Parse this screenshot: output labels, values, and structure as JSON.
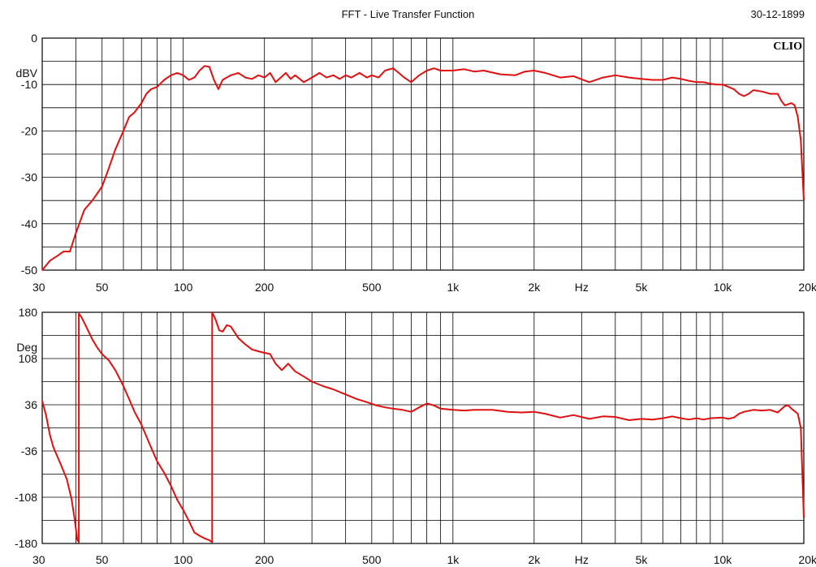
{
  "window": {
    "title": "FFT - Live Transfer Function",
    "date": "30-12-1899",
    "brand": "CLIO"
  },
  "colors": {
    "trace": "#e01010",
    "grid": "#000000",
    "background": "#ffffff"
  },
  "chart_data": [
    {
      "type": "line",
      "panel": "magnitude",
      "ylabel": "dBV",
      "x_scale": "log",
      "xlim": [
        30,
        20000
      ],
      "ylim": [
        -50,
        0
      ],
      "grid": true,
      "y_ticks": [
        0,
        -10,
        -20,
        -30,
        -40,
        -50
      ],
      "x_ticks": [
        {
          "value": 30,
          "label": "30"
        },
        {
          "value": 50,
          "label": "50"
        },
        {
          "value": 100,
          "label": "100"
        },
        {
          "value": 200,
          "label": "200"
        },
        {
          "value": 500,
          "label": "500"
        },
        {
          "value": 1000,
          "label": "1k"
        },
        {
          "value": 2000,
          "label": "2k"
        },
        {
          "value": 3000,
          "label": "Hz"
        },
        {
          "value": 5000,
          "label": "5k"
        },
        {
          "value": 10000,
          "label": "10k"
        },
        {
          "value": 20000,
          "label": "20k"
        }
      ],
      "series": [
        {
          "color": "#e01010",
          "points": [
            [
              30,
              -50
            ],
            [
              32,
              -48
            ],
            [
              34,
              -47
            ],
            [
              36,
              -46
            ],
            [
              38,
              -46
            ],
            [
              40,
              -42
            ],
            [
              43,
              -37
            ],
            [
              46,
              -35
            ],
            [
              50,
              -32
            ],
            [
              53,
              -28
            ],
            [
              56,
              -24
            ],
            [
              60,
              -20
            ],
            [
              63,
              -17
            ],
            [
              66,
              -16
            ],
            [
              70,
              -14
            ],
            [
              73,
              -12
            ],
            [
              76,
              -11
            ],
            [
              80,
              -10.5
            ],
            [
              85,
              -9
            ],
            [
              90,
              -8
            ],
            [
              95,
              -7.5
            ],
            [
              100,
              -8
            ],
            [
              105,
              -9
            ],
            [
              110,
              -8.5
            ],
            [
              115,
              -7
            ],
            [
              120,
              -6
            ],
            [
              125,
              -6.2
            ],
            [
              130,
              -9
            ],
            [
              135,
              -11
            ],
            [
              140,
              -9
            ],
            [
              150,
              -8
            ],
            [
              160,
              -7.5
            ],
            [
              170,
              -8.5
            ],
            [
              180,
              -8.8
            ],
            [
              190,
              -8
            ],
            [
              200,
              -8.5
            ],
            [
              210,
              -7.5
            ],
            [
              220,
              -9.5
            ],
            [
              230,
              -8.5
            ],
            [
              240,
              -7.5
            ],
            [
              250,
              -8.8
            ],
            [
              260,
              -8
            ],
            [
              280,
              -9.5
            ],
            [
              300,
              -8.5
            ],
            [
              320,
              -7.5
            ],
            [
              340,
              -8.5
            ],
            [
              360,
              -8
            ],
            [
              380,
              -8.8
            ],
            [
              400,
              -8
            ],
            [
              420,
              -8.5
            ],
            [
              450,
              -7.5
            ],
            [
              480,
              -8.5
            ],
            [
              500,
              -8
            ],
            [
              530,
              -8.5
            ],
            [
              560,
              -7
            ],
            [
              600,
              -6.5
            ],
            [
              630,
              -7.5
            ],
            [
              660,
              -8.5
            ],
            [
              700,
              -9.5
            ],
            [
              750,
              -8
            ],
            [
              800,
              -7
            ],
            [
              850,
              -6.5
            ],
            [
              900,
              -7
            ],
            [
              1000,
              -7
            ],
            [
              1100,
              -6.7
            ],
            [
              1200,
              -7.2
            ],
            [
              1300,
              -7
            ],
            [
              1500,
              -7.8
            ],
            [
              1700,
              -8
            ],
            [
              1850,
              -7.2
            ],
            [
              2000,
              -7
            ],
            [
              2200,
              -7.5
            ],
            [
              2500,
              -8.5
            ],
            [
              2800,
              -8.2
            ],
            [
              3200,
              -9.5
            ],
            [
              3600,
              -8.5
            ],
            [
              4000,
              -8
            ],
            [
              4500,
              -8.5
            ],
            [
              5000,
              -8.8
            ],
            [
              5500,
              -9
            ],
            [
              6000,
              -9
            ],
            [
              6500,
              -8.5
            ],
            [
              7000,
              -8.8
            ],
            [
              7500,
              -9.2
            ],
            [
              8000,
              -9.5
            ],
            [
              8500,
              -9.5
            ],
            [
              9000,
              -9.8
            ],
            [
              9500,
              -10
            ],
            [
              10000,
              -10
            ],
            [
              10500,
              -10.5
            ],
            [
              11000,
              -11
            ],
            [
              11500,
              -12
            ],
            [
              12000,
              -12.5
            ],
            [
              12500,
              -12
            ],
            [
              13000,
              -11.2
            ],
            [
              14000,
              -11.5
            ],
            [
              15000,
              -12
            ],
            [
              16000,
              -12
            ],
            [
              16500,
              -13.5
            ],
            [
              17000,
              -14.5
            ],
            [
              18000,
              -14
            ],
            [
              18500,
              -14.5
            ],
            [
              19000,
              -17
            ],
            [
              19500,
              -22
            ],
            [
              20000,
              -35
            ]
          ]
        }
      ]
    },
    {
      "type": "line",
      "panel": "phase",
      "ylabel": "Deg",
      "x_scale": "log",
      "xlim": [
        30,
        20000
      ],
      "ylim": [
        -180,
        180
      ],
      "grid": true,
      "y_ticks": [
        180,
        108,
        36,
        -36,
        -108,
        -180
      ],
      "x_ticks": [
        {
          "value": 30,
          "label": "30"
        },
        {
          "value": 50,
          "label": "50"
        },
        {
          "value": 100,
          "label": "100"
        },
        {
          "value": 200,
          "label": "200"
        },
        {
          "value": 500,
          "label": "500"
        },
        {
          "value": 1000,
          "label": "1k"
        },
        {
          "value": 2000,
          "label": "2k"
        },
        {
          "value": 3000,
          "label": "Hz"
        },
        {
          "value": 5000,
          "label": "5k"
        },
        {
          "value": 10000,
          "label": "10k"
        },
        {
          "value": 20000,
          "label": "20k"
        }
      ],
      "series": [
        {
          "color": "#e01010",
          "points": [
            [
              30,
              42
            ],
            [
              31,
              20
            ],
            [
              32,
              -10
            ],
            [
              33,
              -30
            ],
            [
              35,
              -55
            ],
            [
              37,
              -80
            ],
            [
              38.5,
              -110
            ],
            [
              39.5,
              -140
            ],
            [
              40.5,
              -175
            ],
            [
              41,
              -178
            ],
            [
              41,
              178
            ],
            [
              42,
              172
            ],
            [
              44,
              155
            ],
            [
              46,
              138
            ],
            [
              48,
              125
            ],
            [
              50,
              115
            ],
            [
              53,
              105
            ],
            [
              56,
              90
            ],
            [
              60,
              65
            ],
            [
              63,
              45
            ],
            [
              66,
              25
            ],
            [
              70,
              5
            ],
            [
              75,
              -25
            ],
            [
              80,
              -52
            ],
            [
              85,
              -70
            ],
            [
              90,
              -90
            ],
            [
              95,
              -112
            ],
            [
              100,
              -128
            ],
            [
              105,
              -145
            ],
            [
              110,
              -163
            ],
            [
              115,
              -168
            ],
            [
              120,
              -172
            ],
            [
              125,
              -175
            ],
            [
              128,
              -178
            ],
            [
              128,
              180
            ],
            [
              132,
              168
            ],
            [
              136,
              152
            ],
            [
              140,
              150
            ],
            [
              145,
              160
            ],
            [
              150,
              158
            ],
            [
              160,
              140
            ],
            [
              170,
              130
            ],
            [
              180,
              122
            ],
            [
              195,
              118
            ],
            [
              210,
              115
            ],
            [
              220,
              100
            ],
            [
              232,
              90
            ],
            [
              245,
              100
            ],
            [
              260,
              88
            ],
            [
              280,
              80
            ],
            [
              300,
              72
            ],
            [
              330,
              65
            ],
            [
              360,
              60
            ],
            [
              400,
              52
            ],
            [
              440,
              45
            ],
            [
              480,
              40
            ],
            [
              520,
              35
            ],
            [
              560,
              32
            ],
            [
              600,
              30
            ],
            [
              650,
              28
            ],
            [
              700,
              25
            ],
            [
              750,
              32
            ],
            [
              800,
              38
            ],
            [
              850,
              35
            ],
            [
              900,
              30
            ],
            [
              1000,
              28
            ],
            [
              1100,
              27
            ],
            [
              1200,
              28
            ],
            [
              1400,
              28
            ],
            [
              1600,
              25
            ],
            [
              1800,
              24
            ],
            [
              2000,
              25
            ],
            [
              2200,
              22
            ],
            [
              2500,
              16
            ],
            [
              2800,
              20
            ],
            [
              3200,
              14
            ],
            [
              3600,
              18
            ],
            [
              4000,
              17
            ],
            [
              4500,
              12
            ],
            [
              5000,
              14
            ],
            [
              5500,
              13
            ],
            [
              6000,
              15
            ],
            [
              6500,
              18
            ],
            [
              7000,
              15
            ],
            [
              7500,
              13
            ],
            [
              8000,
              15
            ],
            [
              8500,
              13
            ],
            [
              9000,
              15
            ],
            [
              10000,
              16
            ],
            [
              10500,
              14
            ],
            [
              11000,
              16
            ],
            [
              11500,
              22
            ],
            [
              12000,
              25
            ],
            [
              13000,
              28
            ],
            [
              14000,
              27
            ],
            [
              15000,
              28
            ],
            [
              16000,
              24
            ],
            [
              17000,
              34
            ],
            [
              17500,
              35
            ],
            [
              18000,
              30
            ],
            [
              19000,
              22
            ],
            [
              19500,
              0
            ],
            [
              20000,
              -140
            ]
          ]
        }
      ]
    }
  ]
}
